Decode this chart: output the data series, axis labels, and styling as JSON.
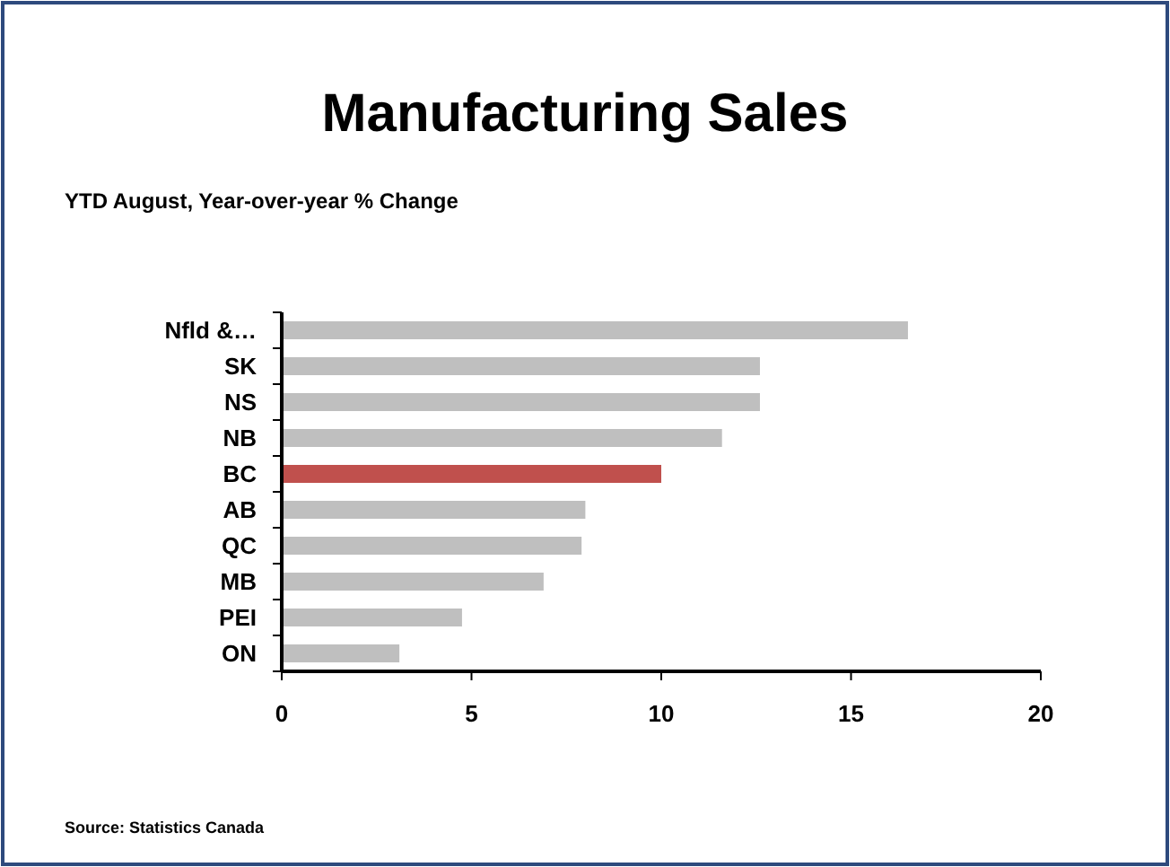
{
  "chart_data": {
    "type": "bar",
    "orientation": "horizontal",
    "title": "Manufacturing Sales",
    "subtitle": "YTD August, Year-over-year % Change",
    "categories": [
      "Nfld &…",
      "SK",
      "NS",
      "NB",
      "BC",
      "AB",
      "QC",
      "MB",
      "PEI",
      "ON"
    ],
    "values": [
      16.5,
      12.6,
      12.6,
      11.6,
      10.0,
      8.0,
      7.9,
      6.9,
      4.75,
      3.1
    ],
    "colors": [
      "#bfbfbf",
      "#bfbfbf",
      "#bfbfbf",
      "#bfbfbf",
      "#c0504d",
      "#bfbfbf",
      "#bfbfbf",
      "#bfbfbf",
      "#bfbfbf",
      "#bfbfbf"
    ],
    "xlim": [
      0,
      20
    ],
    "xticks": [
      0,
      5,
      10,
      15,
      20
    ],
    "annotations": [
      "Source:  Statistics Canada"
    ]
  }
}
